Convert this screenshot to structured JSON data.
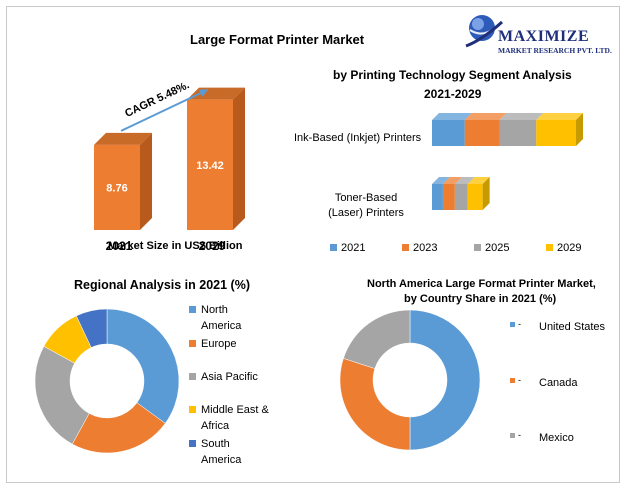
{
  "colors": {
    "y2021": "#5B9BD5",
    "y2023": "#ED7D31",
    "y2025": "#A5A5A5",
    "y2029": "#FFC000",
    "south_america": "#4472C4",
    "bar_side": "#B85A1C",
    "bar_top": "#C86A28",
    "logo_blue": "#1F2F7A"
  },
  "logo": {
    "name": "MAXIMIZE",
    "tagline": "MARKET RESEARCH PVT. LTD."
  },
  "chart_data": [
    {
      "type": "bar",
      "title": "Large Format Printer Market",
      "xlabel": "Market Size in US$ Billion",
      "categories": [
        "2021",
        "2029"
      ],
      "values": [
        8.76,
        13.42
      ],
      "value_labels": [
        "8.76",
        "13.42"
      ],
      "annotation": "CAGR 5.48%."
    },
    {
      "type": "bar",
      "orientation": "horizontal-stacked",
      "title": "by Printing Technology Segment Analysis",
      "subtitle": "2021-2029",
      "categories": [
        "Ink-Based (Inkjet) Printers",
        "Toner-Based (Laser) Printers"
      ],
      "series": [
        {
          "name": "2021",
          "values": [
            33,
            11
          ]
        },
        {
          "name": "2023",
          "values": [
            35,
            12
          ]
        },
        {
          "name": "2025",
          "values": [
            37,
            13
          ]
        },
        {
          "name": "2029",
          "values": [
            40,
            15
          ]
        }
      ]
    },
    {
      "type": "pie",
      "style": "donut",
      "title": "Regional Analysis in 2021 (%)",
      "labels": [
        "North America",
        "Europe",
        "Asia Pacific",
        "Middle East & Africa",
        "South America"
      ],
      "legend_lines": [
        [
          "North",
          "America"
        ],
        [
          "Europe"
        ],
        [
          "Asia Pacific"
        ],
        [
          "Middle East &",
          "Africa"
        ],
        [
          "South",
          "America"
        ]
      ],
      "values": [
        35,
        23,
        25,
        10,
        7
      ],
      "legend": "right"
    },
    {
      "type": "pie",
      "style": "donut",
      "title": "North America Large Format Printer Market,",
      "subtitle": "by Country Share in 2021 (%)",
      "labels": [
        "United States",
        "Canada",
        "Mexico"
      ],
      "values": [
        50,
        30,
        20
      ],
      "legend": "right"
    }
  ]
}
